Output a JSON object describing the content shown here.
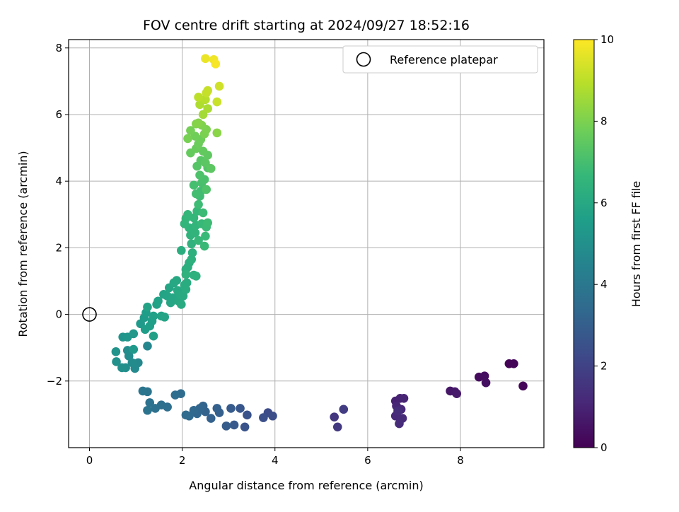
{
  "chart_data": {
    "type": "scatter",
    "title": "FOV centre drift starting at 2024/09/27 18:52:16",
    "xlabel": "Angular distance from reference (arcmin)",
    "ylabel": "Rotation from reference (arcmin)",
    "xlim": [
      -0.45,
      9.8
    ],
    "ylim": [
      -4.0,
      8.25
    ],
    "x_ticks": [
      0,
      2,
      4,
      6,
      8
    ],
    "x_tick_labels": [
      "0",
      "2",
      "4",
      "6",
      "8"
    ],
    "y_ticks": [
      -2,
      0,
      2,
      4,
      6,
      8
    ],
    "y_tick_labels": [
      "−2",
      "0",
      "2",
      "4",
      "6",
      "8"
    ],
    "grid": true,
    "legend": {
      "placement": "top-right",
      "entries": [
        "Reference platepar"
      ]
    },
    "colorbar": {
      "label": "Hours from first FF file",
      "range": [
        0,
        10
      ],
      "ticks": [
        0,
        2,
        4,
        6,
        8,
        10
      ],
      "tick_labels": [
        "0",
        "2",
        "4",
        "6",
        "8",
        "10"
      ],
      "colormap": "viridis",
      "colors": [
        "#440154",
        "#482878",
        "#3e4989",
        "#31688e",
        "#26828e",
        "#1f9e89",
        "#35b779",
        "#6ece58",
        "#b5de2b",
        "#fde725"
      ]
    },
    "reference_point": {
      "x": 0,
      "y": 0
    },
    "points": [
      [
        9.05,
        -1.48,
        0.05
      ],
      [
        9.15,
        -1.48,
        0.08
      ],
      [
        9.35,
        -2.15,
        0.12
      ],
      [
        8.4,
        -1.88,
        0.3
      ],
      [
        8.52,
        -1.85,
        0.35
      ],
      [
        8.55,
        -2.05,
        0.4
      ],
      [
        7.78,
        -2.3,
        0.6
      ],
      [
        7.88,
        -2.32,
        0.65
      ],
      [
        7.92,
        -2.38,
        0.7
      ],
      [
        6.6,
        -2.6,
        0.9
      ],
      [
        6.7,
        -2.52,
        0.95
      ],
      [
        6.78,
        -2.52,
        1.0
      ],
      [
        6.62,
        -2.75,
        1.05
      ],
      [
        6.72,
        -2.85,
        1.1
      ],
      [
        6.6,
        -3.05,
        1.15
      ],
      [
        6.75,
        -3.12,
        1.2
      ],
      [
        6.68,
        -3.28,
        1.25
      ],
      [
        6.65,
        -2.9,
        1.3
      ],
      [
        5.28,
        -3.08,
        1.6
      ],
      [
        5.35,
        -3.38,
        1.7
      ],
      [
        5.48,
        -2.85,
        1.8
      ],
      [
        3.85,
        -2.95,
        2.3
      ],
      [
        3.95,
        -3.05,
        2.4
      ],
      [
        3.75,
        -3.1,
        2.45
      ],
      [
        3.4,
        -3.02,
        2.55
      ],
      [
        3.35,
        -3.38,
        2.6
      ],
      [
        3.25,
        -2.82,
        2.7
      ],
      [
        3.12,
        -3.32,
        2.8
      ],
      [
        3.05,
        -2.82,
        2.85
      ],
      [
        2.95,
        -3.35,
        2.9
      ],
      [
        2.8,
        -2.95,
        3.0
      ],
      [
        2.75,
        -2.82,
        3.05
      ],
      [
        2.62,
        -3.12,
        3.1
      ],
      [
        2.5,
        -2.92,
        3.15
      ],
      [
        2.45,
        -2.75,
        3.2
      ],
      [
        2.38,
        -2.82,
        3.25
      ],
      [
        2.32,
        -2.98,
        3.3
      ],
      [
        2.25,
        -2.88,
        3.35
      ],
      [
        2.15,
        -3.05,
        3.4
      ],
      [
        2.08,
        -3.02,
        3.45
      ],
      [
        1.97,
        -2.38,
        3.5
      ],
      [
        1.85,
        -2.42,
        3.55
      ],
      [
        1.68,
        -2.78,
        3.6
      ],
      [
        1.55,
        -2.72,
        3.65
      ],
      [
        1.42,
        -2.82,
        3.7
      ],
      [
        1.3,
        -2.65,
        3.75
      ],
      [
        1.25,
        -2.88,
        3.8
      ],
      [
        1.25,
        -2.32,
        3.85
      ],
      [
        1.15,
        -2.3,
        3.9
      ],
      [
        1.25,
        -0.95,
        4.6
      ],
      [
        1.05,
        -1.45,
        4.7
      ],
      [
        0.98,
        -1.62,
        4.75
      ],
      [
        0.92,
        -1.45,
        4.8
      ],
      [
        0.85,
        -1.25,
        4.85
      ],
      [
        0.82,
        -1.08,
        4.9
      ],
      [
        0.78,
        -1.6,
        4.95
      ],
      [
        0.7,
        -1.6,
        5.0
      ],
      [
        0.58,
        -1.42,
        5.05
      ],
      [
        0.57,
        -1.12,
        5.1
      ],
      [
        0.72,
        -0.68,
        5.2
      ],
      [
        0.82,
        -0.68,
        5.25
      ],
      [
        0.95,
        -0.58,
        5.3
      ],
      [
        0.95,
        -1.05,
        5.35
      ],
      [
        1.1,
        -0.28,
        5.4
      ],
      [
        1.18,
        -0.1,
        5.45
      ],
      [
        1.22,
        0.05,
        5.5
      ],
      [
        1.2,
        -0.45,
        5.55
      ],
      [
        1.3,
        -0.35,
        5.6
      ],
      [
        1.35,
        -0.2,
        5.62
      ],
      [
        1.38,
        -0.65,
        5.65
      ],
      [
        1.38,
        -0.05,
        5.68
      ],
      [
        1.45,
        0.3,
        5.7
      ],
      [
        1.48,
        0.4,
        5.72
      ],
      [
        1.25,
        0.22,
        5.75
      ],
      [
        1.55,
        -0.05,
        5.78
      ],
      [
        1.6,
        0.6,
        5.8
      ],
      [
        1.62,
        -0.08,
        5.82
      ],
      [
        1.68,
        0.55,
        5.85
      ],
      [
        1.72,
        0.8,
        5.88
      ],
      [
        1.75,
        0.35,
        5.9
      ],
      [
        1.8,
        0.5,
        5.92
      ],
      [
        1.82,
        0.95,
        5.95
      ],
      [
        1.88,
        1.02,
        5.98
      ],
      [
        1.9,
        0.72,
        6.0
      ],
      [
        1.92,
        0.4,
        6.02
      ],
      [
        1.95,
        0.62,
        6.05
      ],
      [
        1.98,
        0.3,
        6.08
      ],
      [
        2.02,
        0.55,
        6.1
      ],
      [
        2.05,
        0.88,
        6.12
      ],
      [
        2.08,
        0.75,
        6.15
      ],
      [
        2.1,
        0.95,
        6.18
      ],
      [
        2.12,
        1.42,
        6.2
      ],
      [
        1.98,
        1.92,
        6.22
      ],
      [
        2.08,
        1.35,
        6.25
      ],
      [
        2.15,
        1.55,
        6.28
      ],
      [
        2.2,
        1.65,
        6.3
      ],
      [
        2.22,
        1.85,
        6.32
      ],
      [
        2.25,
        1.18,
        6.35
      ],
      [
        2.3,
        1.15,
        6.38
      ],
      [
        2.08,
        1.2,
        6.4
      ],
      [
        2.2,
        2.12,
        6.42
      ],
      [
        2.18,
        2.38,
        6.45
      ],
      [
        2.15,
        2.6,
        6.48
      ],
      [
        2.28,
        2.45,
        6.5
      ],
      [
        2.3,
        2.68,
        6.52
      ],
      [
        2.05,
        2.72,
        6.55
      ],
      [
        2.08,
        2.88,
        6.58
      ],
      [
        2.12,
        3.0,
        6.6
      ],
      [
        2.25,
        2.9,
        6.62
      ],
      [
        2.32,
        3.1,
        6.65
      ],
      [
        2.35,
        2.22,
        6.68
      ],
      [
        2.42,
        2.72,
        6.7
      ],
      [
        2.48,
        2.05,
        6.72
      ],
      [
        2.5,
        2.35,
        6.75
      ],
      [
        2.52,
        2.62,
        6.78
      ],
      [
        2.45,
        3.05,
        6.8
      ],
      [
        2.55,
        2.75,
        6.82
      ],
      [
        2.35,
        3.3,
        6.85
      ],
      [
        2.38,
        3.55,
        6.88
      ],
      [
        2.4,
        3.7,
        6.9
      ],
      [
        2.3,
        3.62,
        6.95
      ],
      [
        2.25,
        3.88,
        7.0
      ],
      [
        2.42,
        3.95,
        7.05
      ],
      [
        2.48,
        4.05,
        7.1
      ],
      [
        2.38,
        4.18,
        7.15
      ],
      [
        2.52,
        3.75,
        7.2
      ],
      [
        2.55,
        4.4,
        7.25
      ],
      [
        2.32,
        4.45,
        7.3
      ],
      [
        2.4,
        4.62,
        7.35
      ],
      [
        2.5,
        4.55,
        7.4
      ],
      [
        2.62,
        4.38,
        7.45
      ],
      [
        2.55,
        4.78,
        7.5
      ],
      [
        2.45,
        4.9,
        7.55
      ],
      [
        2.18,
        4.85,
        7.6
      ],
      [
        2.3,
        4.98,
        7.65
      ],
      [
        2.35,
        5.12,
        7.7
      ],
      [
        2.4,
        5.25,
        7.75
      ],
      [
        2.28,
        5.35,
        7.8
      ],
      [
        2.18,
        5.52,
        7.85
      ],
      [
        2.12,
        5.28,
        7.9
      ],
      [
        2.48,
        5.42,
        7.95
      ],
      [
        2.52,
        5.55,
        8.0
      ],
      [
        2.42,
        5.68,
        8.05
      ],
      [
        2.3,
        5.72,
        8.1
      ],
      [
        2.35,
        5.75,
        8.15
      ],
      [
        2.75,
        5.45,
        8.2
      ],
      [
        2.45,
        6.0,
        8.6
      ],
      [
        2.55,
        6.18,
        8.7
      ],
      [
        2.38,
        6.3,
        8.8
      ],
      [
        2.5,
        6.45,
        8.9
      ],
      [
        2.35,
        6.52,
        9.0
      ],
      [
        2.52,
        6.65,
        9.1
      ],
      [
        2.55,
        6.72,
        9.15
      ],
      [
        2.75,
        6.38,
        9.2
      ],
      [
        2.8,
        6.85,
        9.3
      ],
      [
        2.5,
        7.68,
        9.7
      ],
      [
        2.68,
        7.65,
        9.8
      ],
      [
        2.72,
        7.52,
        9.9
      ]
    ]
  }
}
